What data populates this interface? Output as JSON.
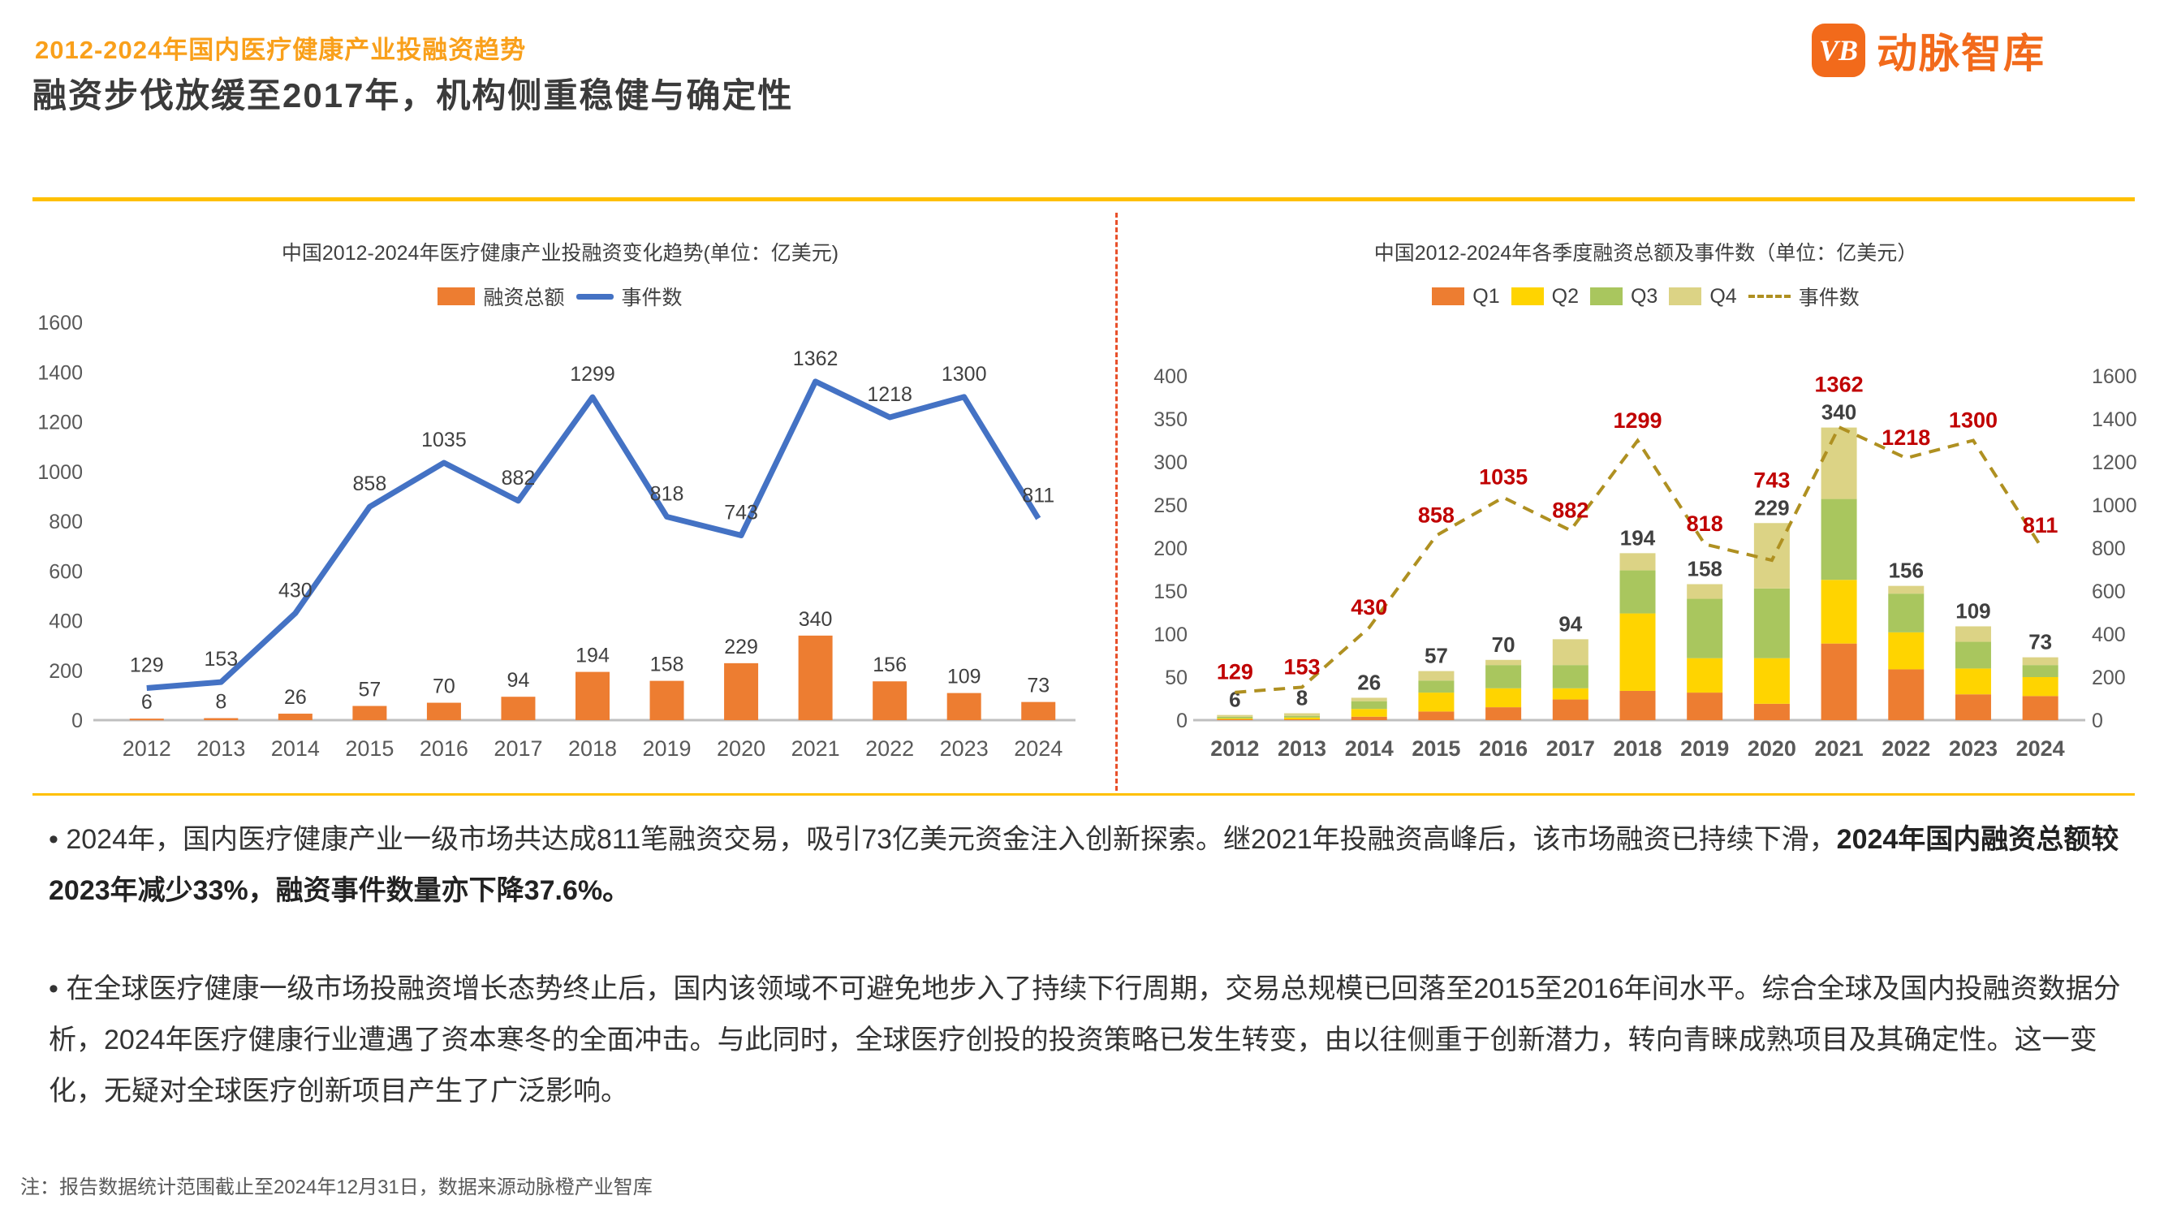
{
  "header": {
    "eyebrow": "2012-2024年国内医疗健康产业投融资趋势",
    "title": "融资步伐放缓至2017年，机构侧重稳健与确定性",
    "logo": {
      "mark": "VB",
      "name": "动脉智库"
    }
  },
  "colors": {
    "brand_orange": "#F26A1B",
    "header_orange": "#F9A01B",
    "rule_gold": "#FFC000",
    "divider_orange": "#E8502A",
    "events_olive": "#AF9021",
    "label_red": "#C00000",
    "text_dark": "#3B3B3B",
    "text_gray": "#595959"
  },
  "chart_data": [
    {
      "type": "bar",
      "subtype": "bar+line combo",
      "title": "中国2012-2024年医疗健康产业投融资变化趋势(单位：亿美元)",
      "categories": [
        "2012",
        "2013",
        "2014",
        "2015",
        "2016",
        "2017",
        "2018",
        "2019",
        "2020",
        "2021",
        "2022",
        "2023",
        "2024"
      ],
      "series": [
        {
          "name": "融资总额",
          "type": "bar",
          "color": "#ED7D31",
          "values": [
            6,
            8,
            26,
            57,
            70,
            94,
            194,
            158,
            229,
            340,
            156,
            109,
            73
          ]
        },
        {
          "name": "事件数",
          "type": "line",
          "color": "#4472C4",
          "values": [
            129,
            153,
            430,
            858,
            1035,
            882,
            1299,
            818,
            743,
            1362,
            1218,
            1300,
            811
          ]
        }
      ],
      "ylim": [
        0,
        1600
      ],
      "ytick": 200,
      "grid": false,
      "legend_position": "top",
      "xlabel": "",
      "ylabel": ""
    },
    {
      "type": "bar",
      "subtype": "stacked-bar+dashed-line, dual axis",
      "title": "中国2012-2024年各季度融资总额及事件数（单位：亿美元）",
      "categories": [
        "2012",
        "2013",
        "2014",
        "2015",
        "2016",
        "2017",
        "2018",
        "2019",
        "2020",
        "2021",
        "2022",
        "2023",
        "2024"
      ],
      "series": [
        {
          "name": "Q1",
          "type": "bar",
          "color": "#ED7D31",
          "values": [
            1,
            1,
            4,
            10,
            15,
            24,
            34,
            32,
            19,
            89,
            59,
            30,
            28
          ]
        },
        {
          "name": "Q2",
          "type": "bar",
          "color": "#FFD400",
          "values": [
            1,
            2,
            9,
            22,
            22,
            13,
            90,
            40,
            53,
            74,
            43,
            30,
            22
          ]
        },
        {
          "name": "Q3",
          "type": "bar",
          "color": "#A9C65E",
          "values": [
            2,
            2,
            9,
            14,
            27,
            27,
            50,
            69,
            81,
            94,
            45,
            31,
            14
          ]
        },
        {
          "name": "Q4",
          "type": "bar",
          "color": "#DCD385",
          "values": [
            2,
            3,
            4,
            11,
            6,
            30,
            20,
            17,
            76,
            83,
            9,
            18,
            9
          ]
        },
        {
          "name": "事件数",
          "type": "line",
          "dashed": true,
          "axis": "right",
          "color": "#AF9021",
          "values": [
            129,
            153,
            430,
            858,
            1035,
            882,
            1299,
            818,
            743,
            1362,
            1218,
            1300,
            811
          ]
        }
      ],
      "totals": [
        6,
        8,
        26,
        57,
        70,
        94,
        194,
        158,
        229,
        340,
        156,
        109,
        73
      ],
      "ylim_left": [
        0,
        400
      ],
      "ytick_left": 50,
      "ylim_right": [
        0,
        1600
      ],
      "ytick_right": 200,
      "grid": false,
      "legend_position": "top",
      "total_label_color": "#404040",
      "line_label_color": "#C00000"
    }
  ],
  "bullets": [
    {
      "bullet": "•",
      "text": "2024年，国内医疗健康产业一级市场共达成811笔融资交易，吸引73亿美元资金注入创新探索。继2021年投融资高峰后，该市场融资已持续下滑，",
      "bold": "2024年国内融资总额较2023年减少33%，融资事件数量亦下降37.6%。"
    },
    {
      "bullet": "•",
      "text": "在全球医疗健康一级市场投融资增长态势终止后，国内该领域不可避免地步入了持续下行周期，交易总规模已回落至2015至2016年间水平。综合全球及国内投融资数据分析，2024年医疗健康行业遭遇了资本寒冬的全面冲击。与此同时，全球医疗创投的投资策略已发生转变，由以往侧重于创新潜力，转向青睐成熟项目及其确定性。这一变化，无疑对全球医疗创新项目产生了广泛影响。",
      "bold": ""
    }
  ],
  "footnote": "注：报告数据统计范围截止至2024年12月31日，数据来源动脉橙产业智库"
}
